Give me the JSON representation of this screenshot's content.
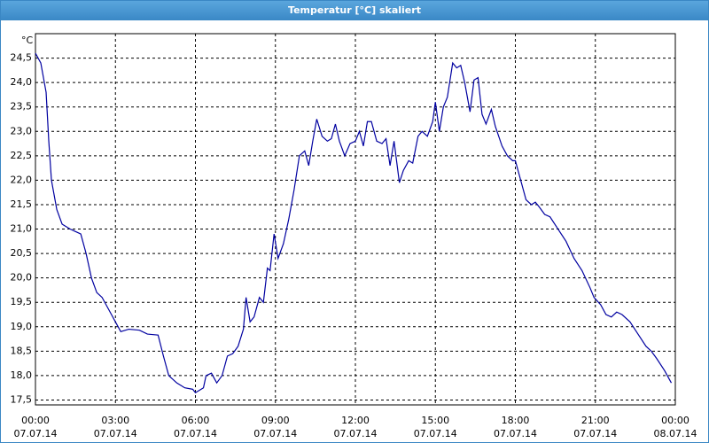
{
  "window_title": "Temperatur [°C] skaliert",
  "chart_data": {
    "type": "line",
    "y_label": "°C",
    "color": "#0000a0",
    "grid": true,
    "ylim": [
      17.4,
      25.0
    ],
    "xlim": [
      0,
      24
    ],
    "yticks": [
      {
        "value": 17.5,
        "label": "17,5"
      },
      {
        "value": 18.0,
        "label": "18,0"
      },
      {
        "value": 18.5,
        "label": "18,5"
      },
      {
        "value": 19.0,
        "label": "19,0"
      },
      {
        "value": 19.5,
        "label": "19,5"
      },
      {
        "value": 20.0,
        "label": "20,0"
      },
      {
        "value": 20.5,
        "label": "20,5"
      },
      {
        "value": 21.0,
        "label": "21,0"
      },
      {
        "value": 21.5,
        "label": "21,5"
      },
      {
        "value": 22.0,
        "label": "22,0"
      },
      {
        "value": 22.5,
        "label": "22,5"
      },
      {
        "value": 23.0,
        "label": "23,0"
      },
      {
        "value": 23.5,
        "label": "23,5"
      },
      {
        "value": 24.0,
        "label": "24,0"
      },
      {
        "value": 24.5,
        "label": "24,5"
      }
    ],
    "xticks": [
      {
        "value": 0,
        "label": "00:00",
        "date": "07.07.14"
      },
      {
        "value": 3,
        "label": "03:00",
        "date": "07.07.14"
      },
      {
        "value": 6,
        "label": "06:00",
        "date": "07.07.14"
      },
      {
        "value": 9,
        "label": "09:00",
        "date": "07.07.14"
      },
      {
        "value": 12,
        "label": "12:00",
        "date": "07.07.14"
      },
      {
        "value": 15,
        "label": "15:00",
        "date": "07.07.14"
      },
      {
        "value": 18,
        "label": "18:00",
        "date": "07.07.14"
      },
      {
        "value": 21,
        "label": "21:00",
        "date": "07.07.14"
      },
      {
        "value": 24,
        "label": "00:00",
        "date": "08.07.14"
      }
    ],
    "x": [
      0,
      0.2,
      0.4,
      0.5,
      0.6,
      0.8,
      1.0,
      1.3,
      1.5,
      1.7,
      1.9,
      2.1,
      2.3,
      2.5,
      2.7,
      2.9,
      3.1,
      3.2,
      3.5,
      3.9,
      4.2,
      4.6,
      4.8,
      5.0,
      5.3,
      5.6,
      5.9,
      6.0,
      6.3,
      6.4,
      6.6,
      6.8,
      7.0,
      7.2,
      7.4,
      7.6,
      7.8,
      7.9,
      8.05,
      8.2,
      8.4,
      8.55,
      8.7,
      8.8,
      8.95,
      9.1,
      9.3,
      9.5,
      9.7,
      9.9,
      10.1,
      10.25,
      10.4,
      10.55,
      10.75,
      10.95,
      11.1,
      11.25,
      11.4,
      11.6,
      11.8,
      12.0,
      12.15,
      12.3,
      12.45,
      12.6,
      12.8,
      13.0,
      13.15,
      13.3,
      13.45,
      13.65,
      13.8,
      14.0,
      14.15,
      14.35,
      14.5,
      14.7,
      14.9,
      15.0,
      15.15,
      15.3,
      15.45,
      15.65,
      15.8,
      15.95,
      16.1,
      16.3,
      16.45,
      16.6,
      16.75,
      16.9,
      17.1,
      17.25,
      17.5,
      17.7,
      17.9,
      18.0,
      18.2,
      18.4,
      18.6,
      18.75,
      18.9,
      19.1,
      19.3,
      19.6,
      19.9,
      20.2,
      20.5,
      20.8,
      20.95,
      21.2,
      21.4,
      21.6,
      21.8,
      22.0,
      22.3,
      22.6,
      22.9,
      23.1,
      23.3,
      23.6,
      23.85
    ],
    "values": [
      24.6,
      24.4,
      23.8,
      22.8,
      22.0,
      21.4,
      21.1,
      21.0,
      20.95,
      20.9,
      20.5,
      20.0,
      19.7,
      19.6,
      19.4,
      19.2,
      19.0,
      18.9,
      18.95,
      18.93,
      18.85,
      18.83,
      18.4,
      18.0,
      17.85,
      17.75,
      17.72,
      17.65,
      17.75,
      18.0,
      18.05,
      17.85,
      18.0,
      18.4,
      18.45,
      18.6,
      18.95,
      19.6,
      19.1,
      19.2,
      19.6,
      19.5,
      20.2,
      20.15,
      20.9,
      20.4,
      20.7,
      21.2,
      21.8,
      22.5,
      22.6,
      22.3,
      22.8,
      23.25,
      22.9,
      22.8,
      22.85,
      23.15,
      22.8,
      22.5,
      22.75,
      22.8,
      23.0,
      22.7,
      23.2,
      23.2,
      22.8,
      22.75,
      22.85,
      22.3,
      22.8,
      21.95,
      22.2,
      22.4,
      22.35,
      22.9,
      23.0,
      22.9,
      23.2,
      23.6,
      23.0,
      23.5,
      23.7,
      24.4,
      24.3,
      24.35,
      24.0,
      23.4,
      24.05,
      24.1,
      23.35,
      23.15,
      23.45,
      23.1,
      22.7,
      22.5,
      22.4,
      22.4,
      22.0,
      21.6,
      21.5,
      21.55,
      21.45,
      21.3,
      21.25,
      21.0,
      20.75,
      20.4,
      20.15,
      19.8,
      19.6,
      19.45,
      19.25,
      19.2,
      19.3,
      19.25,
      19.1,
      18.85,
      18.6,
      18.5,
      18.35,
      18.1,
      17.85
    ]
  }
}
